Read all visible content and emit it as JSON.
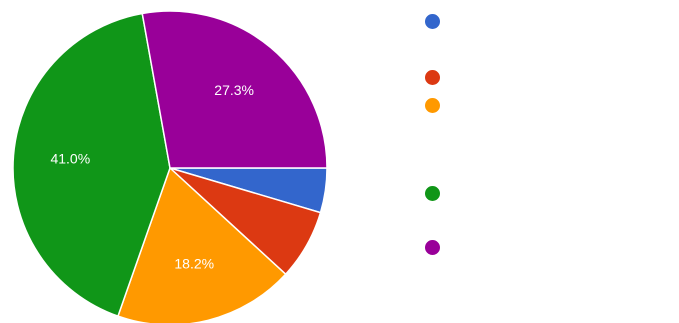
{
  "chart_data": {
    "type": "pie",
    "labels": [
      "",
      "",
      "",
      "",
      ""
    ],
    "values": [
      4.5,
      7.1,
      18.2,
      41.0,
      27.3
    ],
    "data_labels": [
      "",
      "",
      "18.2%",
      "41.0%",
      "27.3%"
    ],
    "colors": [
      "#3366cc",
      "#dc3912",
      "#ff9900",
      "#109618",
      "#990099"
    ],
    "start_angle_deg": 90,
    "direction": "clockwise",
    "legend_position": "right"
  }
}
